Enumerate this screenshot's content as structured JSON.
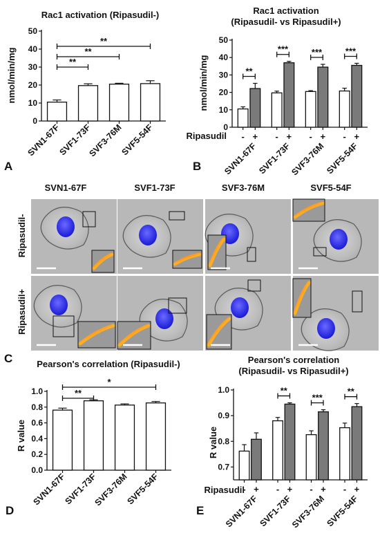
{
  "figure": {
    "panel_labels": [
      "A",
      "B",
      "C",
      "D",
      "E"
    ],
    "microscopy": {
      "column_labels": [
        "SVN1-67F",
        "SVF1-73F",
        "SVF3-76M",
        "SVF5-54F"
      ],
      "row_labels": [
        "Ripasudil-",
        "Ripasudil+"
      ]
    }
  },
  "chart_data": [
    {
      "panel": "A",
      "type": "bar",
      "title": "Rac1 activation (Ripasudil-)",
      "ylabel": "nmol/min/mg",
      "xlabel": "",
      "ylim": [
        0,
        50
      ],
      "yticks": [
        0,
        10,
        20,
        30,
        40,
        50
      ],
      "grid": false,
      "categories": [
        "SVN1-67F",
        "SVF1-73F",
        "SVF3-76M",
        "SVF5-54F"
      ],
      "values": [
        10.5,
        19.7,
        20.5,
        20.8
      ],
      "errors": [
        1.2,
        1.0,
        0.5,
        1.6
      ],
      "bar_color": "#ffffff",
      "significance": [
        {
          "from": 0,
          "to": 1,
          "label": "**"
        },
        {
          "from": 0,
          "to": 2,
          "label": "**"
        },
        {
          "from": 0,
          "to": 3,
          "label": "**"
        }
      ]
    },
    {
      "panel": "B",
      "type": "bar",
      "title": "Rac1 activation\n(Ripasudil- vs Ripasudil+)",
      "ylabel": "nmol/min/mg",
      "xlabel": "",
      "ylim": [
        0,
        50
      ],
      "yticks": [
        0,
        10,
        20,
        30,
        40,
        50
      ],
      "grid": false,
      "categories": [
        "SVN1-67F",
        "SVF1-73F",
        "SVF3-76M",
        "SVF5-54F"
      ],
      "treatment_label": "Ripasudil",
      "treatment_marks": [
        "-",
        "+"
      ],
      "series": [
        {
          "values": [
            10.5,
            19.7,
            20.5,
            20.8
          ],
          "errors": [
            1.2,
            1.0,
            0.5,
            1.6
          ],
          "color": "#ffffff"
        },
        {
          "values": [
            22.2,
            37.0,
            34.5,
            35.5
          ],
          "errors": [
            3.0,
            0.8,
            1.6,
            1.2
          ],
          "color": "#7a7a7a"
        }
      ],
      "significance": [
        {
          "category": 0,
          "label": "**"
        },
        {
          "category": 1,
          "label": "***"
        },
        {
          "category": 2,
          "label": "***"
        },
        {
          "category": 3,
          "label": "***"
        }
      ]
    },
    {
      "panel": "D",
      "type": "bar",
      "title": "Pearson's correlation (Ripasudil-)",
      "ylabel": "R value",
      "xlabel": "",
      "ylim": [
        0,
        1.0
      ],
      "yticks": [
        "0.0",
        "0.2",
        "0.4",
        "0.6",
        "0.8",
        "1.0"
      ],
      "grid": false,
      "categories": [
        "SVN1-67F",
        "SVF1-73F",
        "SVF3-76M",
        "SVF5-54F"
      ],
      "values": [
        0.762,
        0.88,
        0.826,
        0.853
      ],
      "errors": [
        0.025,
        0.013,
        0.015,
        0.018
      ],
      "bar_color": "#ffffff",
      "significance": [
        {
          "from": 0,
          "to": 1,
          "label": "**"
        },
        {
          "from": 0,
          "to": 3,
          "label": "*"
        }
      ]
    },
    {
      "panel": "E",
      "type": "bar",
      "title": "Pearson's correlation\n(Ripasudil- vs Ripasudil+)",
      "ylabel": "R value",
      "xlabel": "",
      "ylim": [
        0.65,
        1.0
      ],
      "yticks": [
        "0.7",
        "0.8",
        "0.9",
        "1.0"
      ],
      "grid": false,
      "categories": [
        "SVN1-67F",
        "SVF1-73F",
        "SVF3-76M",
        "SVF5-54F"
      ],
      "treatment_label": "Ripasudil",
      "treatment_marks": [
        "-",
        "+"
      ],
      "series": [
        {
          "values": [
            0.762,
            0.88,
            0.826,
            0.853
          ],
          "errors": [
            0.025,
            0.013,
            0.015,
            0.018
          ],
          "color": "#ffffff"
        },
        {
          "values": [
            0.808,
            0.945,
            0.915,
            0.935
          ],
          "errors": [
            0.025,
            0.005,
            0.008,
            0.012
          ],
          "color": "#7a7a7a"
        }
      ],
      "significance": [
        {
          "category": 1,
          "label": "**"
        },
        {
          "category": 2,
          "label": "***"
        },
        {
          "category": 3,
          "label": "**"
        }
      ]
    }
  ]
}
